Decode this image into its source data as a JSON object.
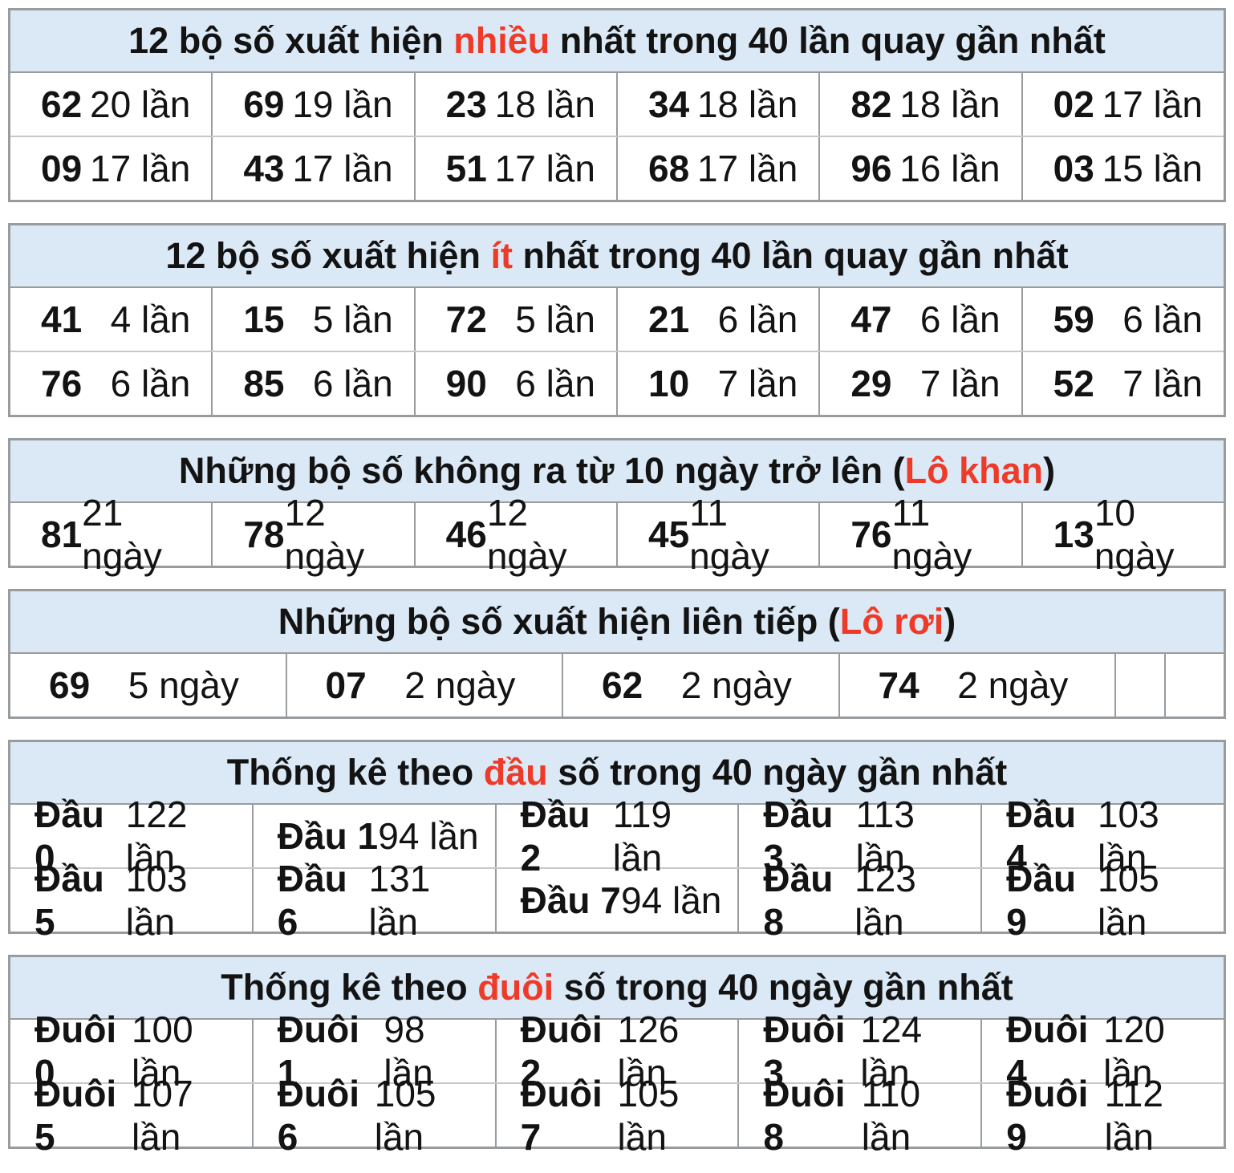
{
  "colors": {
    "header_bg": "#dbe9f6",
    "accent_red": "#ee3a28",
    "text": "#131313",
    "border_dark": "#989c9e",
    "border_light": "#c6c9cb"
  },
  "chart_data": [
    {
      "type": "table",
      "title": {
        "pre": "12 bộ số xuất hiện ",
        "highlight": "nhiều",
        "post": " nhất trong 40 lần quay gần nhất"
      },
      "title_full": "12 bộ số xuất hiện nhiều nhất trong 40 lần quay gần nhất",
      "unit": "lần",
      "rows": [
        [
          {
            "n": "62",
            "v": "20 lần"
          },
          {
            "n": "69",
            "v": "19 lần"
          },
          {
            "n": "23",
            "v": "18 lần"
          },
          {
            "n": "34",
            "v": "18 lần"
          },
          {
            "n": "82",
            "v": "18 lần"
          },
          {
            "n": "02",
            "v": "17 lần"
          }
        ],
        [
          {
            "n": "09",
            "v": "17 lần"
          },
          {
            "n": "43",
            "v": "17 lần"
          },
          {
            "n": "51",
            "v": "17 lần"
          },
          {
            "n": "68",
            "v": "17 lần"
          },
          {
            "n": "96",
            "v": "16 lần"
          },
          {
            "n": "03",
            "v": "15 lần"
          }
        ]
      ]
    },
    {
      "type": "table",
      "title": {
        "pre": "12 bộ số xuất hiện ",
        "highlight": "ít",
        "post": " nhất trong 40 lần quay gần nhất"
      },
      "title_full": "12 bộ số xuất hiện ít nhất trong 40 lần quay gần nhất",
      "unit": "lần",
      "rows": [
        [
          {
            "n": "41",
            "v": "4 lần"
          },
          {
            "n": "15",
            "v": "5 lần"
          },
          {
            "n": "72",
            "v": "5 lần"
          },
          {
            "n": "21",
            "v": "6 lần"
          },
          {
            "n": "47",
            "v": "6 lần"
          },
          {
            "n": "59",
            "v": "6 lần"
          }
        ],
        [
          {
            "n": "76",
            "v": "6 lần"
          },
          {
            "n": "85",
            "v": "6 lần"
          },
          {
            "n": "90",
            "v": "6 lần"
          },
          {
            "n": "10",
            "v": "7 lần"
          },
          {
            "n": "29",
            "v": "7 lần"
          },
          {
            "n": "52",
            "v": "7 lần"
          }
        ]
      ]
    },
    {
      "type": "table",
      "title": {
        "pre": "Những bộ số không ra từ 10 ngày trở lên (",
        "highlight": "Lô khan",
        "post": ")"
      },
      "title_full": "Những bộ số không ra từ 10 ngày trở lên (Lô khan)",
      "unit": "ngày",
      "rows": [
        [
          {
            "n": "81",
            "v": "21 ngày"
          },
          {
            "n": "78",
            "v": "12 ngày"
          },
          {
            "n": "46",
            "v": "12 ngày"
          },
          {
            "n": "45",
            "v": "11 ngày"
          },
          {
            "n": "76",
            "v": "11 ngày"
          },
          {
            "n": "13",
            "v": "10 ngày"
          }
        ]
      ]
    },
    {
      "type": "table",
      "title": {
        "pre": "Những bộ số xuất hiện liên tiếp (",
        "highlight": "Lô rơi",
        "post": ")"
      },
      "title_full": "Những bộ số xuất hiện liên tiếp (Lô rơi)",
      "unit": "ngày",
      "rows": [
        [
          {
            "n": "69",
            "v": "5 ngày"
          },
          {
            "n": "07",
            "v": "2 ngày"
          },
          {
            "n": "62",
            "v": "2 ngày"
          },
          {
            "n": "74",
            "v": "2 ngày"
          }
        ]
      ]
    },
    {
      "type": "table",
      "title": {
        "pre": "Thống kê theo ",
        "highlight": "đầu",
        "post": " số trong 40 ngày gần nhất"
      },
      "title_full": "Thống kê theo đầu số trong 40 ngày gần nhất",
      "unit": "lần",
      "rows": [
        [
          {
            "n": "Đầu 0",
            "v": "122 lần"
          },
          {
            "n": "Đầu 1",
            "v": "94 lần"
          },
          {
            "n": "Đầu 2",
            "v": "119 lần"
          },
          {
            "n": "Đầu 3",
            "v": "113 lần"
          },
          {
            "n": "Đầu 4",
            "v": "103 lần"
          }
        ],
        [
          {
            "n": "Đầu 5",
            "v": "103 lần"
          },
          {
            "n": "Đầu 6",
            "v": "131 lần"
          },
          {
            "n": "Đầu 7",
            "v": "94 lần"
          },
          {
            "n": "Đầu 8",
            "v": "123 lần"
          },
          {
            "n": "Đầu 9",
            "v": "105 lần"
          }
        ]
      ]
    },
    {
      "type": "table",
      "title": {
        "pre": "Thống kê theo ",
        "highlight": "đuôi",
        "post": " số trong 40 ngày gần nhất"
      },
      "title_full": "Thống kê theo đuôi số trong 40 ngày gần nhất",
      "unit": "lần",
      "rows": [
        [
          {
            "n": "Đuôi 0",
            "v": "100 lần"
          },
          {
            "n": "Đuôi 1",
            "v": "98 lần"
          },
          {
            "n": "Đuôi 2",
            "v": "126 lần"
          },
          {
            "n": "Đuôi 3",
            "v": "124 lần"
          },
          {
            "n": "Đuôi 4",
            "v": "120 lần"
          }
        ],
        [
          {
            "n": "Đuôi 5",
            "v": "107 lần"
          },
          {
            "n": "Đuôi 6",
            "v": "105 lần"
          },
          {
            "n": "Đuôi 7",
            "v": "105 lần"
          },
          {
            "n": "Đuôi 8",
            "v": "110 lần"
          },
          {
            "n": "Đuôi 9",
            "v": "112 lần"
          }
        ]
      ]
    }
  ]
}
